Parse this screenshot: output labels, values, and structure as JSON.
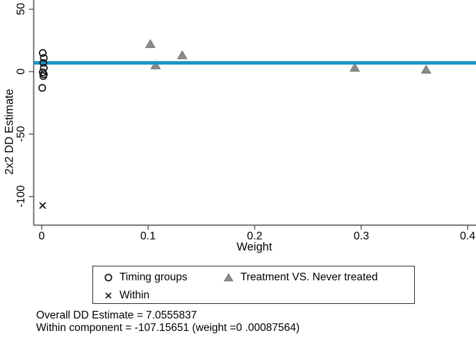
{
  "figure": {
    "footer_lines": [
      "Overall DD Estimate = 7.0555837",
      "Within component = -107.15651 (weight =0 .00087564)"
    ]
  },
  "colors": {
    "reference_line": "#1b94c7",
    "triangle_fill": "#8a8a8a",
    "triangle_stroke": "#6e6e6e",
    "marker_black": "#111111",
    "axis": "#5f5f5f"
  },
  "chart_data": {
    "type": "scatter",
    "title": "",
    "xlabel": "Weight",
    "ylabel": "2x2 DD Estimate",
    "x_ticks": [
      0,
      0.1,
      0.2,
      0.3,
      0.4
    ],
    "x_tick_labels": [
      "0",
      "0.1",
      "0.2",
      "0.3",
      "0.4"
    ],
    "y_ticks": [
      50,
      0,
      -50,
      -100
    ],
    "y_tick_labels": [
      "50",
      "0",
      "-50",
      "-100"
    ],
    "xlim": [
      -0.008,
      0.408
    ],
    "ylim": [
      -122,
      55
    ],
    "grid": false,
    "legend_position": "bottom",
    "reference_line": {
      "name": "Overall DD Estimate",
      "value": 7.0555837
    },
    "series": [
      {
        "name": "Timing groups",
        "marker": "circle-hollow",
        "points": [
          {
            "x": 0.001,
            "y": 15
          },
          {
            "x": 0.002,
            "y": 11
          },
          {
            "x": 0.0015,
            "y": 7
          },
          {
            "x": 0.002,
            "y": 3
          },
          {
            "x": 0.001,
            "y": -0.5
          },
          {
            "x": 0.002,
            "y": -2
          },
          {
            "x": 0.0015,
            "y": -3.5
          },
          {
            "x": 0.0005,
            "y": -13
          }
        ]
      },
      {
        "name": "Treatment VS. Never treated",
        "marker": "triangle",
        "points": [
          {
            "x": 0.102,
            "y": 22
          },
          {
            "x": 0.107,
            "y": 5
          },
          {
            "x": 0.132,
            "y": 13
          },
          {
            "x": 0.294,
            "y": 3
          },
          {
            "x": 0.361,
            "y": 1.5
          }
        ]
      },
      {
        "name": "Within",
        "marker": "x",
        "points": [
          {
            "x": 0.00087564,
            "y": -107.15651
          }
        ]
      }
    ]
  }
}
